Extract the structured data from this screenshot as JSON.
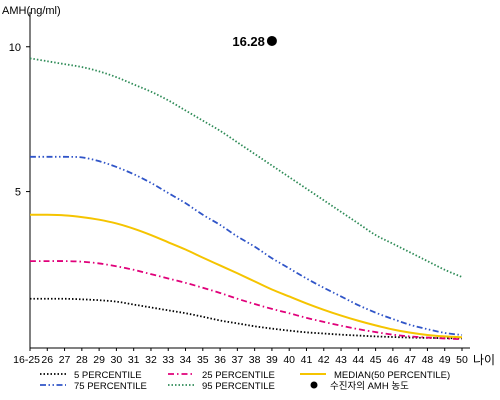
{
  "chart_data": {
    "type": "line",
    "ylabel": "AMH(ng/ml)",
    "xlabel": "나이",
    "x": [
      "16-25",
      "26",
      "27",
      "28",
      "29",
      "30",
      "31",
      "32",
      "33",
      "34",
      "35",
      "36",
      "37",
      "38",
      "39",
      "40",
      "41",
      "42",
      "43",
      "44",
      "45",
      "46",
      "47",
      "48",
      "49",
      "50"
    ],
    "y_ticks": [
      "10",
      "5"
    ],
    "ylim": [
      -0.4,
      11.2
    ],
    "series": [
      {
        "name": "5 PERCENTILE",
        "color": "#000000",
        "style": "dotted",
        "values": [
          1.3,
          1.3,
          1.3,
          1.28,
          1.25,
          1.2,
          1.1,
          1.0,
          0.9,
          0.8,
          0.68,
          0.55,
          0.45,
          0.35,
          0.27,
          0.2,
          0.14,
          0.1,
          0.06,
          0.03,
          0.0,
          -0.02,
          -0.04,
          -0.05,
          -0.06,
          -0.07
        ]
      },
      {
        "name": "25 PERCENTILE",
        "color": "#e0007a",
        "style": "dashdot",
        "values": [
          2.6,
          2.6,
          2.6,
          2.58,
          2.52,
          2.42,
          2.3,
          2.15,
          2.0,
          1.85,
          1.68,
          1.5,
          1.3,
          1.12,
          0.95,
          0.8,
          0.64,
          0.5,
          0.37,
          0.25,
          0.15,
          0.06,
          0.0,
          -0.04,
          -0.07,
          -0.1
        ]
      },
      {
        "name": "MEDIAN(50 PERCENTILE)",
        "color": "#f5c400",
        "style": "solid",
        "values": [
          4.2,
          4.2,
          4.18,
          4.12,
          4.03,
          3.9,
          3.72,
          3.5,
          3.25,
          3.0,
          2.72,
          2.45,
          2.18,
          1.9,
          1.62,
          1.38,
          1.14,
          0.92,
          0.72,
          0.54,
          0.38,
          0.24,
          0.13,
          0.05,
          0.0,
          -0.03
        ]
      },
      {
        "name": "75 PERCENTILE",
        "color": "#3055c8",
        "style": "dashdotdot",
        "values": [
          6.2,
          6.2,
          6.2,
          6.18,
          6.05,
          5.85,
          5.6,
          5.3,
          4.95,
          4.6,
          4.2,
          3.85,
          3.45,
          3.1,
          2.7,
          2.35,
          2.0,
          1.68,
          1.38,
          1.08,
          0.82,
          0.6,
          0.4,
          0.25,
          0.12,
          0.05
        ]
      },
      {
        "name": "95 PERCENTILE",
        "color": "#2e8b57",
        "style": "dotted",
        "values": [
          9.6,
          9.5,
          9.4,
          9.3,
          9.15,
          8.95,
          8.7,
          8.45,
          8.15,
          7.8,
          7.45,
          7.1,
          6.7,
          6.3,
          5.9,
          5.5,
          5.1,
          4.7,
          4.3,
          3.9,
          3.5,
          3.2,
          2.9,
          2.6,
          2.3,
          2.05
        ]
      }
    ],
    "marker": {
      "label": "16.28",
      "legend": "수진자의 AMH 농도",
      "color": "#000000",
      "x": "39",
      "y": 10.2
    },
    "grid": false,
    "legend_position": "bottom"
  }
}
